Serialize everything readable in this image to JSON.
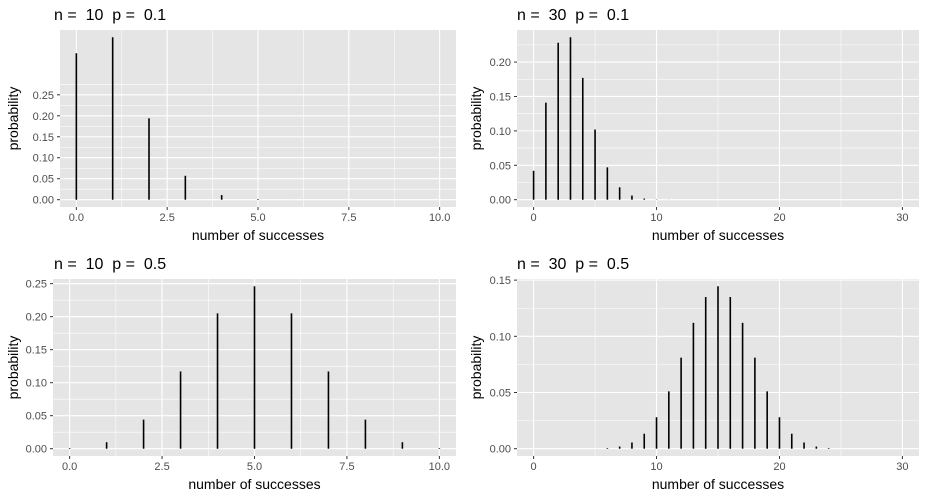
{
  "chart_data": [
    {
      "type": "bar",
      "title": "n =  10  p =  0.1",
      "xlabel": "number of successes",
      "ylabel": "probability",
      "xlim": [
        0,
        10
      ],
      "ylim": [
        0,
        0.387
      ],
      "xticks": [
        0,
        2.5,
        5,
        7.5,
        10
      ],
      "xtick_labels": [
        "0.0",
        "2.5",
        "5.0",
        "7.5",
        "10.0"
      ],
      "yticks": [
        0,
        0.05,
        0.1,
        0.15,
        0.2,
        0.25
      ],
      "ytick_labels": [
        "0.00",
        "0.05",
        "0.10",
        "0.15",
        "0.20",
        "0.25"
      ],
      "x": [
        0,
        1,
        2,
        3,
        4,
        5,
        6,
        7,
        8,
        9,
        10
      ],
      "values": [
        0.349,
        0.387,
        0.194,
        0.057,
        0.011,
        0.0015,
        0.0001,
        0,
        0,
        0,
        0
      ],
      "grid": true
    },
    {
      "type": "bar",
      "title": "n =  30  p =  0.1",
      "xlabel": "number of successes",
      "ylabel": "probability",
      "xlim": [
        0,
        30
      ],
      "ylim": [
        0,
        0.236
      ],
      "xticks": [
        0,
        10,
        20,
        30
      ],
      "xtick_labels": [
        "0",
        "10",
        "20",
        "30"
      ],
      "yticks": [
        0,
        0.05,
        0.1,
        0.15,
        0.2
      ],
      "ytick_labels": [
        "0.00",
        "0.05",
        "0.10",
        "0.15",
        "0.20"
      ],
      "x": [
        0,
        1,
        2,
        3,
        4,
        5,
        6,
        7,
        8,
        9,
        10,
        11,
        12
      ],
      "values": [
        0.042,
        0.141,
        0.228,
        0.236,
        0.177,
        0.102,
        0.047,
        0.018,
        0.006,
        0.0016,
        0.0004,
        0.0001,
        0
      ],
      "grid": true
    },
    {
      "type": "bar",
      "title": "n =  10  p =  0.5",
      "xlabel": "number of successes",
      "ylabel": "probability",
      "xlim": [
        0,
        10
      ],
      "ylim": [
        0,
        0.246
      ],
      "xticks": [
        0,
        2.5,
        5,
        7.5,
        10
      ],
      "xtick_labels": [
        "0.0",
        "2.5",
        "5.0",
        "7.5",
        "10.0"
      ],
      "yticks": [
        0,
        0.05,
        0.1,
        0.15,
        0.2,
        0.25
      ],
      "ytick_labels": [
        "0.00",
        "0.05",
        "0.10",
        "0.15",
        "0.20",
        "0.25"
      ],
      "x": [
        0,
        1,
        2,
        3,
        4,
        5,
        6,
        7,
        8,
        9,
        10
      ],
      "values": [
        0.001,
        0.0098,
        0.044,
        0.117,
        0.205,
        0.246,
        0.205,
        0.117,
        0.044,
        0.0098,
        0.001
      ],
      "grid": true
    },
    {
      "type": "bar",
      "title": "n =  30  p =  0.5",
      "xlabel": "number of successes",
      "ylabel": "probability",
      "xlim": [
        0,
        30
      ],
      "ylim": [
        0,
        0.1445
      ],
      "xticks": [
        0,
        10,
        20,
        30
      ],
      "xtick_labels": [
        "0",
        "10",
        "20",
        "30"
      ],
      "yticks": [
        0,
        0.05,
        0.1,
        0.15
      ],
      "ytick_labels": [
        "0.00",
        "0.05",
        "0.10",
        "0.15"
      ],
      "x": [
        6,
        7,
        8,
        9,
        10,
        11,
        12,
        13,
        14,
        15,
        16,
        17,
        18,
        19,
        20,
        21,
        22,
        23,
        24
      ],
      "values": [
        0.0006,
        0.0019,
        0.0055,
        0.0133,
        0.028,
        0.051,
        0.081,
        0.112,
        0.135,
        0.1445,
        0.135,
        0.112,
        0.081,
        0.051,
        0.028,
        0.0133,
        0.0055,
        0.0019,
        0.0006
      ],
      "grid": true
    }
  ],
  "colors": {
    "panel_background": "#e5e5e5",
    "grid_line": "#ffffff",
    "bar": "#000000",
    "tick_label": "#4d4d4d"
  }
}
